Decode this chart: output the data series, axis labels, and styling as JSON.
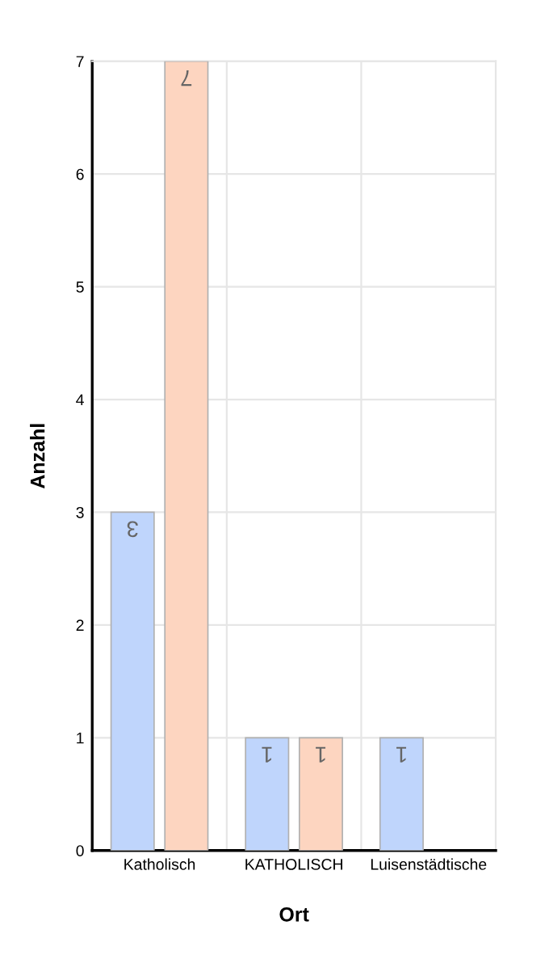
{
  "chart_data": {
    "type": "bar",
    "xlabel": "Ort",
    "ylabel": "Anzahl",
    "categories": [
      "Katholisch",
      "KATHOLISCH",
      "Luisenstädtische"
    ],
    "series": [
      {
        "color": "#bfd5fc",
        "values": [
          3,
          1,
          1
        ]
      },
      {
        "color": "#fdd5c0",
        "values": [
          7,
          1,
          null
        ]
      }
    ],
    "ylim": [
      0,
      7
    ],
    "yticks": [
      0,
      1,
      2,
      3,
      4,
      5,
      6,
      7
    ],
    "grid": true,
    "data_labels": true
  }
}
